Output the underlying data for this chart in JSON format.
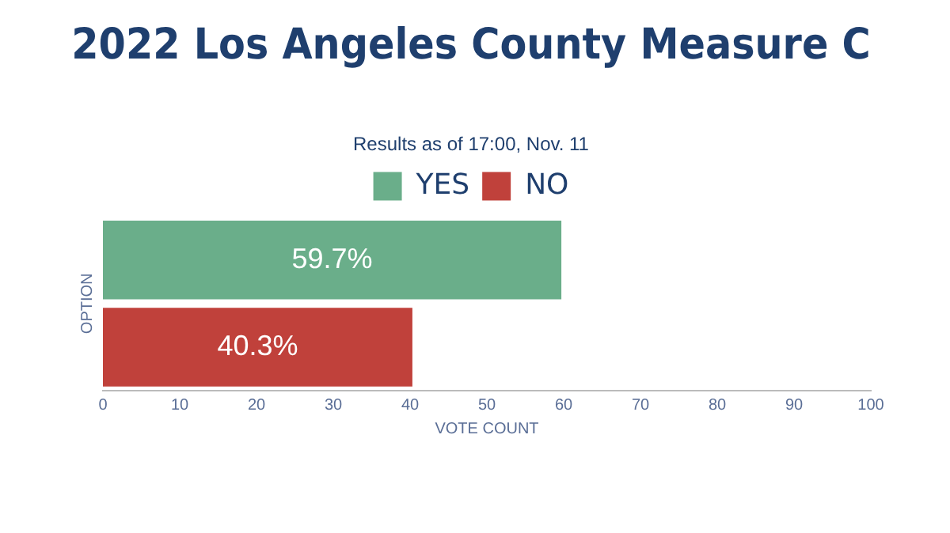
{
  "chart_data": {
    "type": "bar",
    "orientation": "horizontal",
    "stacked": true,
    "title": "2022 Los Angeles County Measure C",
    "subtitle": "Results as of 17:00, Nov. 11",
    "xlabel": "VOTE COUNT",
    "ylabel": "OPTION",
    "categories": [
      null,
      null
    ],
    "series": [
      {
        "name": "YES",
        "color": "#6aae8a",
        "values": [
          59.7,
          null
        ],
        "value_labels": [
          "59.7%",
          null
        ]
      },
      {
        "name": "NO",
        "color": "#c0413b",
        "values": [
          null,
          40.3
        ],
        "value_labels": [
          null,
          "40.3%"
        ]
      }
    ],
    "xlim": [
      0,
      100
    ],
    "xticks": [
      0,
      10,
      20,
      30,
      40,
      50,
      60,
      70,
      80,
      90,
      100
    ],
    "grid": false,
    "legend": "top",
    "tick_labels": "x"
  }
}
